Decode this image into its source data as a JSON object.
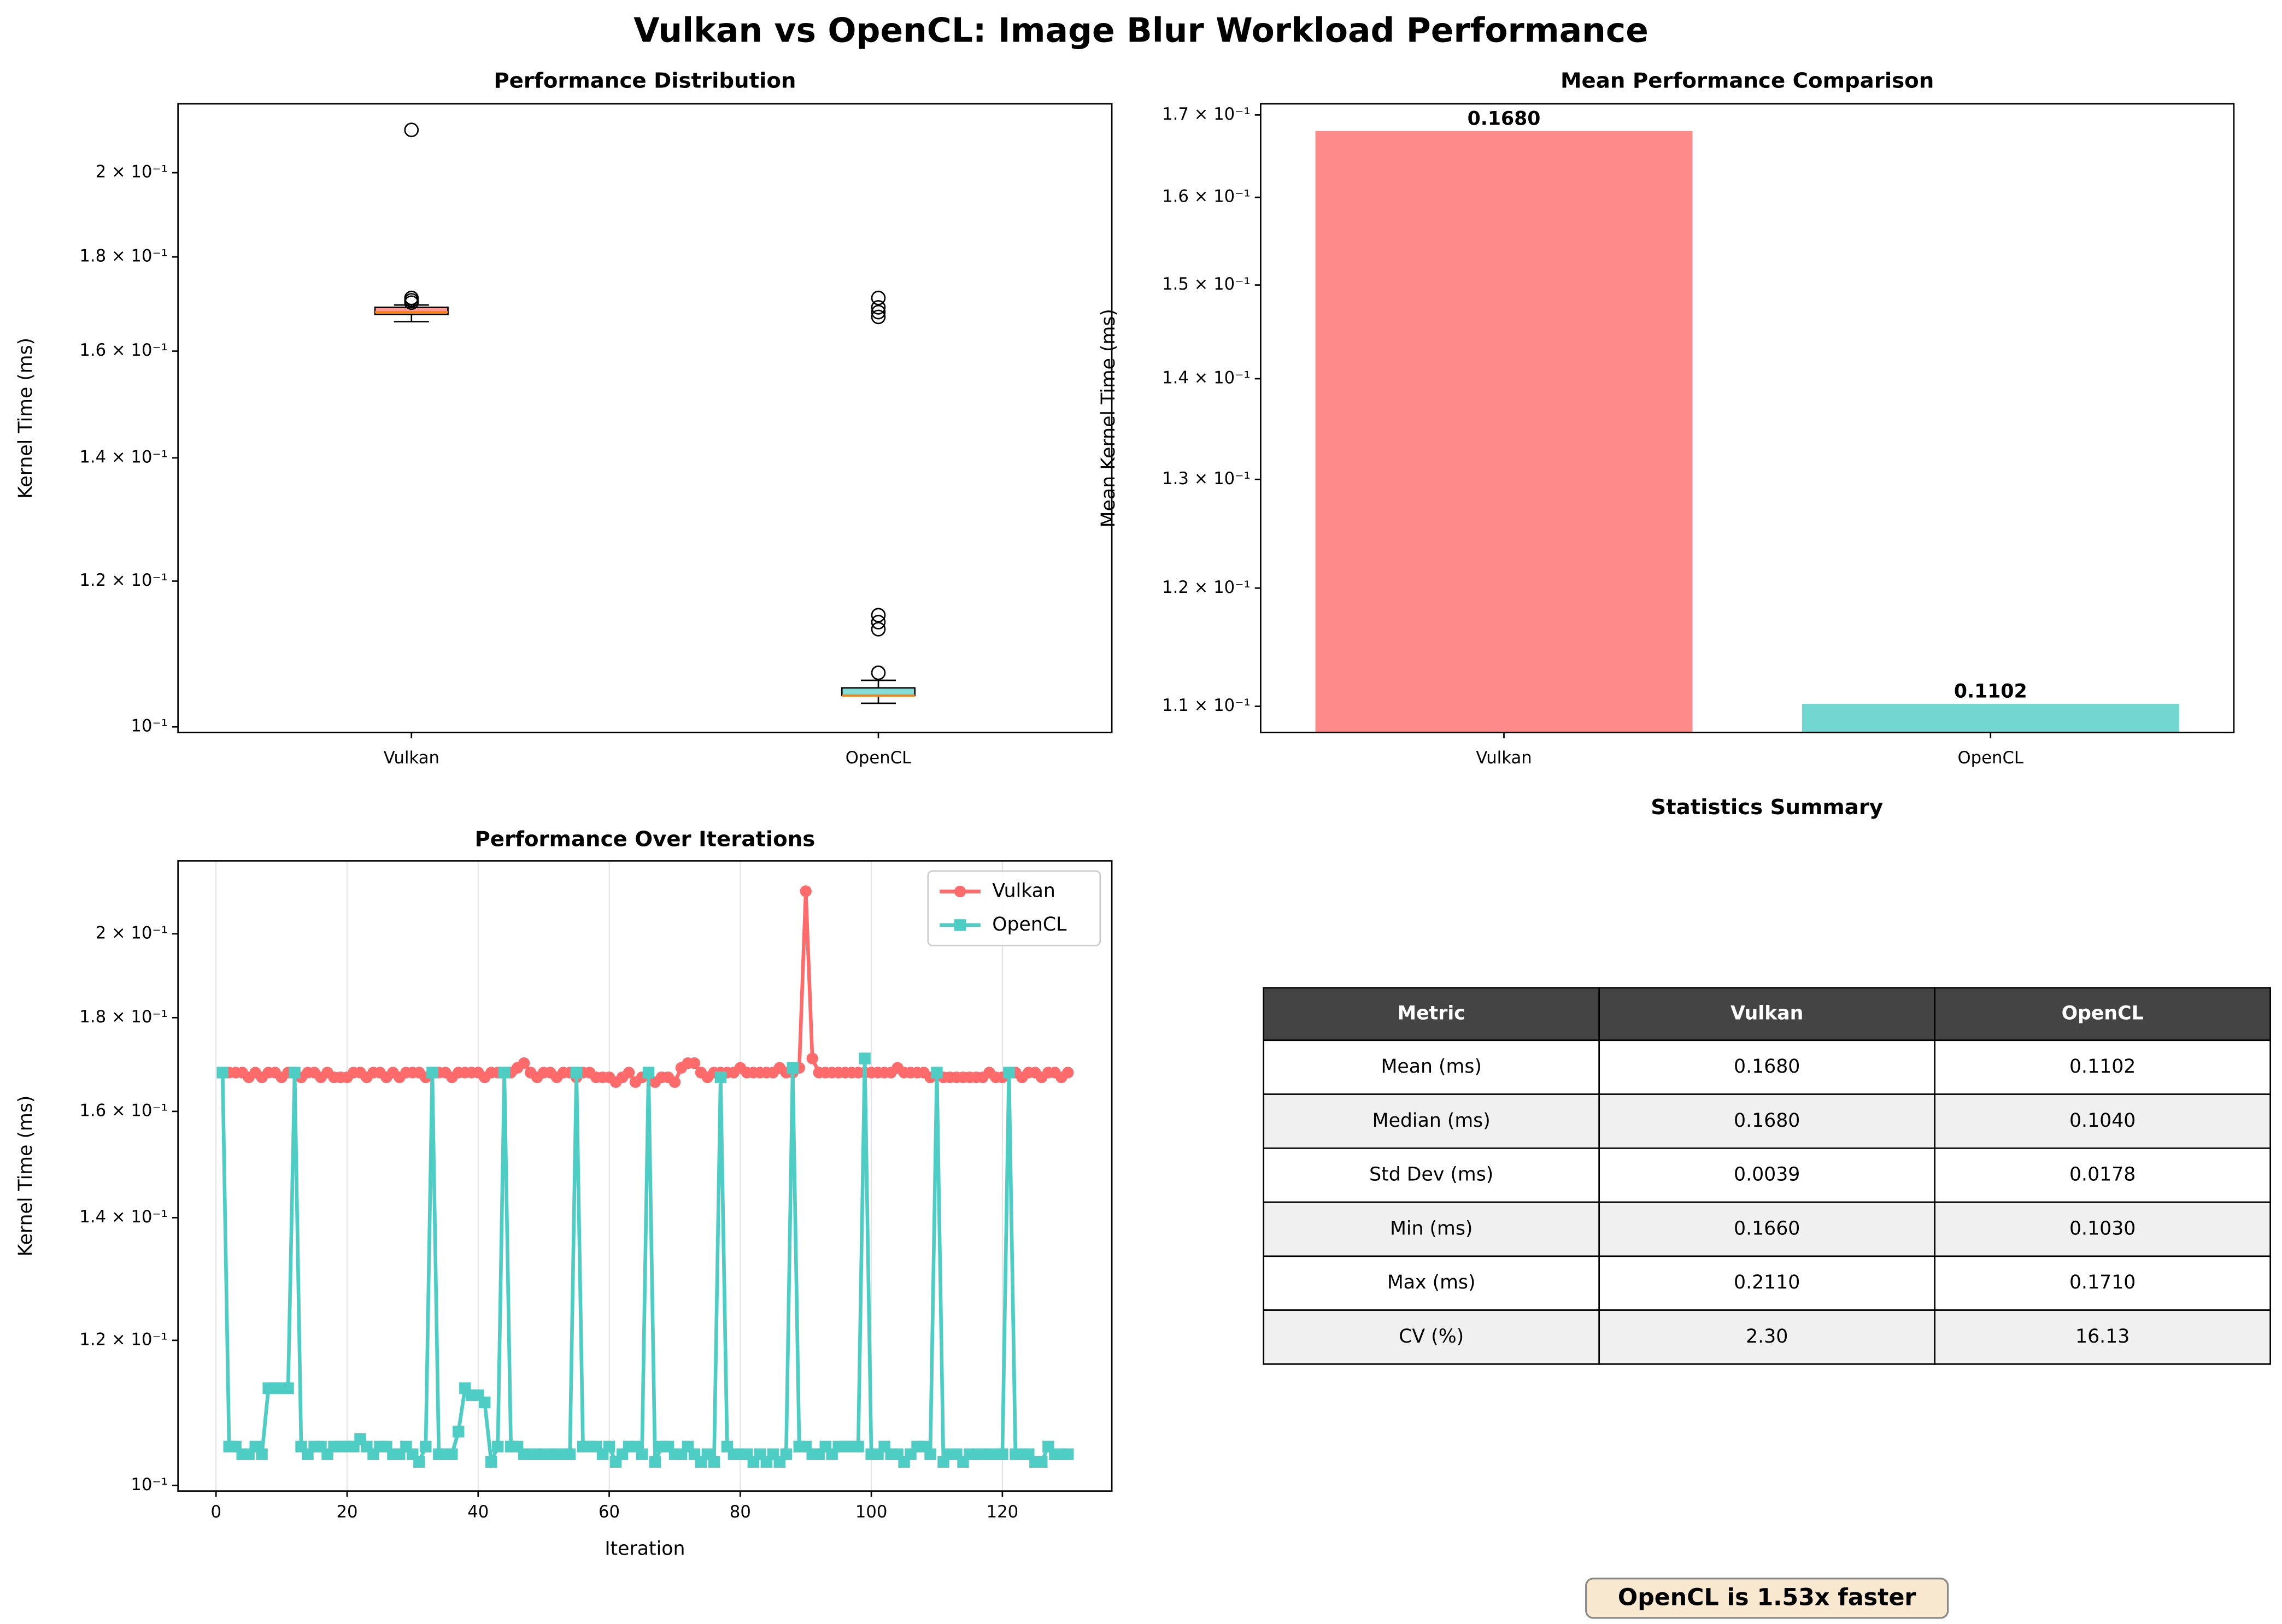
{
  "title": "Vulkan vs OpenCL: Image Blur Workload Performance",
  "chart_data": [
    {
      "type": "box",
      "title": "Performance Distribution",
      "y_label": "Kernel Time (ms)",
      "log_y": true,
      "categories": [
        "Vulkan",
        "OpenCL"
      ],
      "colors": [
        "#FF6B6B",
        "#4ECDC4"
      ],
      "median_color": "#ff7f0e",
      "boxes": [
        {
          "whislo": 0.166,
          "q1": 0.1675,
          "med": 0.168,
          "q3": 0.169,
          "whishi": 0.1695,
          "fliers": [
            0.211,
            0.171,
            0.1705,
            0.17
          ]
        },
        {
          "whislo": 0.103,
          "q1": 0.104,
          "med": 0.104,
          "q3": 0.105,
          "whishi": 0.106,
          "fliers": [
            0.107,
            0.113,
            0.114,
            0.115,
            0.167,
            0.168,
            0.169,
            0.171
          ]
        }
      ],
      "ylim": [
        0.0993,
        0.218
      ],
      "yticks": [
        {
          "value": 0.1,
          "label": "10⁻¹"
        },
        {
          "value": 0.12,
          "label": "1.2 × 10⁻¹"
        },
        {
          "value": 0.14,
          "label": "1.4 × 10⁻¹"
        },
        {
          "value": 0.16,
          "label": "1.6 × 10⁻¹"
        },
        {
          "value": 0.18,
          "label": "1.8 × 10⁻¹"
        },
        {
          "value": 0.2,
          "label": "2 × 10⁻¹"
        }
      ]
    },
    {
      "type": "bar",
      "title": "Mean Performance Comparison",
      "y_label": "Mean Kernel Time (ms)",
      "log_y": true,
      "categories": [
        "Vulkan",
        "OpenCL"
      ],
      "values": [
        0.168,
        0.1102
      ],
      "value_labels": [
        "0.1680",
        "0.1102"
      ],
      "colors": [
        "#FF8A8A",
        "#71D7D0"
      ],
      "ylim": [
        0.1079,
        0.1714
      ],
      "yticks": [
        {
          "value": 0.11,
          "label": "1.1 × 10⁻¹"
        },
        {
          "value": 0.12,
          "label": "1.2 × 10⁻¹"
        },
        {
          "value": 0.13,
          "label": "1.3 × 10⁻¹"
        },
        {
          "value": 0.14,
          "label": "1.4 × 10⁻¹"
        },
        {
          "value": 0.15,
          "label": "1.5 × 10⁻¹"
        },
        {
          "value": 0.16,
          "label": "1.6 × 10⁻¹"
        },
        {
          "value": 0.17,
          "label": "1.7 × 10⁻¹"
        }
      ]
    },
    {
      "type": "line",
      "title": "Performance Over Iterations",
      "y_label": "Kernel Time (ms)",
      "x_label": "Iteration",
      "log_y": true,
      "grid": "x",
      "legend": "upper right",
      "x": [
        1,
        2,
        3,
        4,
        5,
        6,
        7,
        8,
        9,
        10,
        11,
        12,
        13,
        14,
        15,
        16,
        17,
        18,
        19,
        20,
        21,
        22,
        23,
        24,
        25,
        26,
        27,
        28,
        29,
        30,
        31,
        32,
        33,
        34,
        35,
        36,
        37,
        38,
        39,
        40,
        41,
        42,
        43,
        44,
        45,
        46,
        47,
        48,
        49,
        50,
        51,
        52,
        53,
        54,
        55,
        56,
        57,
        58,
        59,
        60,
        61,
        62,
        63,
        64,
        65,
        66,
        67,
        68,
        69,
        70,
        71,
        72,
        73,
        74,
        75,
        76,
        77,
        78,
        79,
        80,
        81,
        82,
        83,
        84,
        85,
        86,
        87,
        88,
        89,
        90,
        91,
        92,
        93,
        94,
        95,
        96,
        97,
        98,
        99,
        100,
        101,
        102,
        103,
        104,
        105,
        106,
        107,
        108,
        109,
        110,
        111,
        112,
        113,
        114,
        115,
        116,
        117,
        118,
        119,
        120,
        121,
        122,
        123,
        124,
        125,
        126,
        127,
        128,
        129,
        130
      ],
      "series": [
        {
          "name": "Vulkan",
          "color": "#FF6B6B",
          "marker": "circle",
          "values": [
            0.168,
            0.168,
            0.168,
            0.168,
            0.167,
            0.168,
            0.167,
            0.168,
            0.168,
            0.167,
            0.168,
            0.168,
            0.167,
            0.168,
            0.168,
            0.167,
            0.168,
            0.167,
            0.167,
            0.167,
            0.168,
            0.168,
            0.167,
            0.168,
            0.168,
            0.167,
            0.168,
            0.167,
            0.168,
            0.168,
            0.168,
            0.167,
            0.168,
            0.168,
            0.168,
            0.167,
            0.168,
            0.168,
            0.168,
            0.168,
            0.167,
            0.168,
            0.168,
            0.168,
            0.168,
            0.169,
            0.17,
            0.168,
            0.167,
            0.168,
            0.168,
            0.167,
            0.168,
            0.168,
            0.167,
            0.168,
            0.168,
            0.167,
            0.167,
            0.167,
            0.166,
            0.167,
            0.168,
            0.166,
            0.167,
            0.168,
            0.166,
            0.167,
            0.167,
            0.166,
            0.169,
            0.17,
            0.17,
            0.168,
            0.167,
            0.168,
            0.168,
            0.168,
            0.168,
            0.169,
            0.168,
            0.168,
            0.168,
            0.168,
            0.168,
            0.169,
            0.168,
            0.168,
            0.169,
            0.211,
            0.171,
            0.168,
            0.168,
            0.168,
            0.168,
            0.168,
            0.168,
            0.168,
            0.168,
            0.168,
            0.168,
            0.168,
            0.168,
            0.169,
            0.168,
            0.168,
            0.168,
            0.168,
            0.167,
            0.168,
            0.167,
            0.167,
            0.167,
            0.167,
            0.167,
            0.167,
            0.167,
            0.168,
            0.167,
            0.167,
            0.168,
            0.168,
            0.167,
            0.168,
            0.168,
            0.167,
            0.168,
            0.168,
            0.167,
            0.168
          ]
        },
        {
          "name": "OpenCL",
          "color": "#4ECDC4",
          "marker": "square",
          "values": [
            0.168,
            0.105,
            0.105,
            0.104,
            0.104,
            0.105,
            0.104,
            0.113,
            0.113,
            0.113,
            0.113,
            0.168,
            0.105,
            0.104,
            0.105,
            0.105,
            0.104,
            0.105,
            0.105,
            0.105,
            0.105,
            0.106,
            0.105,
            0.104,
            0.105,
            0.105,
            0.104,
            0.104,
            0.105,
            0.104,
            0.103,
            0.105,
            0.168,
            0.104,
            0.104,
            0.104,
            0.107,
            0.113,
            0.112,
            0.112,
            0.111,
            0.103,
            0.105,
            0.168,
            0.105,
            0.105,
            0.104,
            0.104,
            0.104,
            0.104,
            0.104,
            0.104,
            0.104,
            0.104,
            0.168,
            0.105,
            0.105,
            0.105,
            0.104,
            0.105,
            0.103,
            0.104,
            0.105,
            0.105,
            0.104,
            0.168,
            0.103,
            0.105,
            0.105,
            0.104,
            0.104,
            0.105,
            0.104,
            0.103,
            0.104,
            0.103,
            0.167,
            0.105,
            0.104,
            0.104,
            0.104,
            0.103,
            0.104,
            0.103,
            0.104,
            0.103,
            0.104,
            0.169,
            0.105,
            0.105,
            0.104,
            0.104,
            0.105,
            0.104,
            0.105,
            0.105,
            0.105,
            0.105,
            0.171,
            0.104,
            0.104,
            0.105,
            0.104,
            0.104,
            0.103,
            0.104,
            0.105,
            0.105,
            0.104,
            0.168,
            0.103,
            0.104,
            0.104,
            0.103,
            0.104,
            0.104,
            0.104,
            0.104,
            0.104,
            0.104,
            0.168,
            0.104,
            0.104,
            0.104,
            0.103,
            0.103,
            0.105,
            0.104,
            0.104,
            0.104
          ]
        }
      ],
      "xlim": [
        -5.8,
        136.7
      ],
      "xticks": [
        0,
        20,
        40,
        60,
        80,
        100,
        120
      ],
      "ylim": [
        0.0993,
        0.2192
      ],
      "yticks": [
        {
          "value": 0.1,
          "label": "10⁻¹"
        },
        {
          "value": 0.12,
          "label": "1.2 × 10⁻¹"
        },
        {
          "value": 0.14,
          "label": "1.4 × 10⁻¹"
        },
        {
          "value": 0.16,
          "label": "1.6 × 10⁻¹"
        },
        {
          "value": 0.18,
          "label": "1.8 × 10⁻¹"
        },
        {
          "value": 0.2,
          "label": "2 × 10⁻¹"
        }
      ]
    }
  ],
  "table": {
    "title": "Statistics Summary",
    "header": [
      "Metric",
      "Vulkan",
      "OpenCL"
    ],
    "rows": [
      [
        "Mean (ms)",
        "0.1680",
        "0.1102"
      ],
      [
        "Median (ms)",
        "0.1680",
        "0.1040"
      ],
      [
        "Std Dev (ms)",
        "0.0039",
        "0.0178"
      ],
      [
        "Min (ms)",
        "0.1660",
        "0.1030"
      ],
      [
        "Max (ms)",
        "0.2110",
        "0.1710"
      ],
      [
        "CV (%)",
        "2.30",
        "16.13"
      ]
    ]
  },
  "annotation": "OpenCL is 1.53x faster"
}
